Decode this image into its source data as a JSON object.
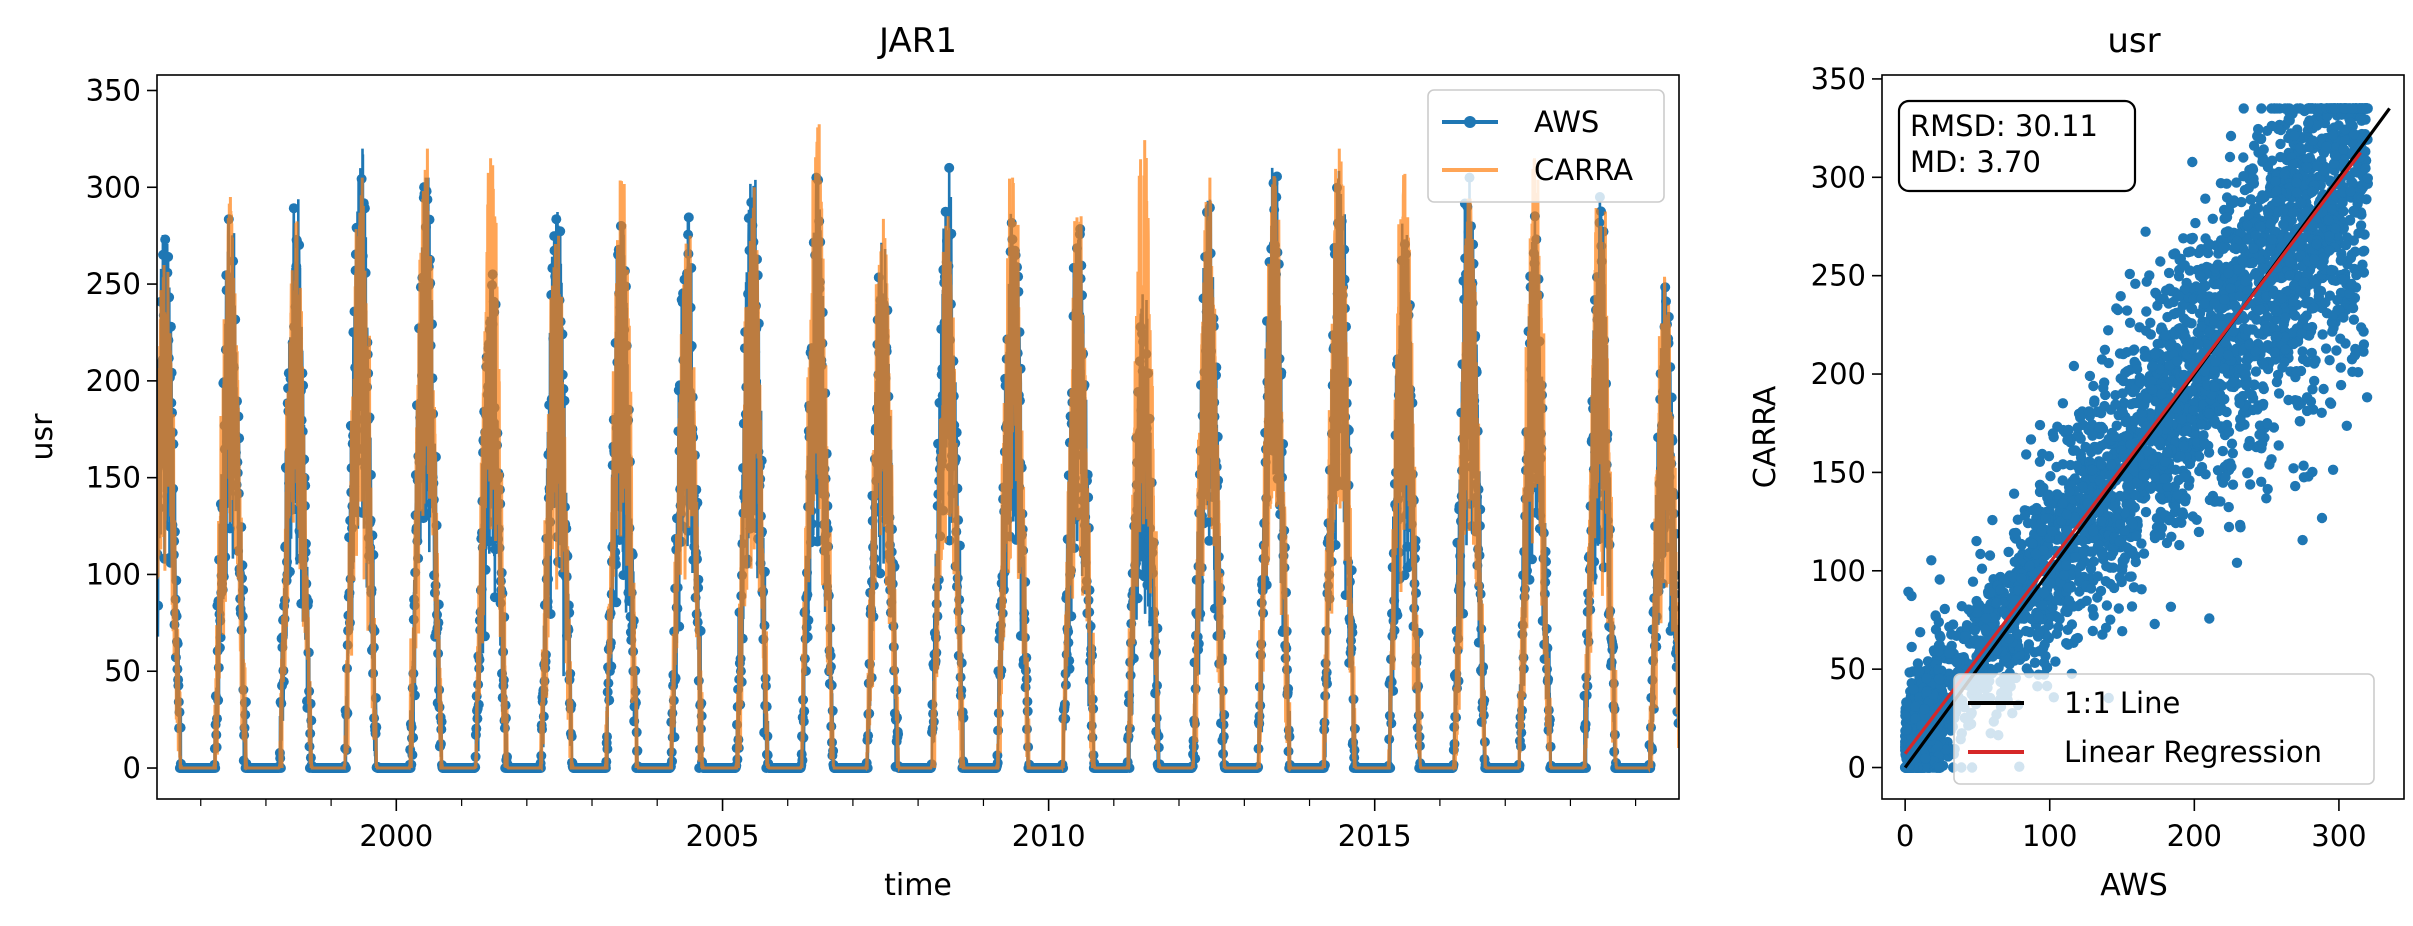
{
  "chart_data": [
    {
      "type": "line",
      "title": "JAR1",
      "xlabel": "time",
      "ylabel": "usr",
      "xlim": [
        "1996-05-01",
        "2019-09-01"
      ],
      "ylim": [
        -16,
        358
      ],
      "xticks": [
        {
          "value": "2000-01-01",
          "label": "2000"
        },
        {
          "value": "2005-01-01",
          "label": "2005"
        },
        {
          "value": "2010-01-01",
          "label": "2010"
        },
        {
          "value": "2015-01-01",
          "label": "2015"
        }
      ],
      "yticks": [
        0,
        50,
        100,
        150,
        200,
        250,
        300,
        350
      ],
      "grid": false,
      "legend": {
        "placement": "upper-right"
      },
      "series": [
        {
          "name": "AWS",
          "color": "#1f77b4",
          "marker": "circle",
          "seasonal_peaks": [
            {
              "date": "1996-06-15",
              "value": 280
            },
            {
              "date": "1997-06-15",
              "value": 285
            },
            {
              "date": "1998-06-15",
              "value": 290
            },
            {
              "date": "1999-06-15",
              "value": 315
            },
            {
              "date": "2000-06-15",
              "value": 300
            },
            {
              "date": "2001-06-15",
              "value": 250
            },
            {
              "date": "2002-06-15",
              "value": 288
            },
            {
              "date": "2003-06-15",
              "value": 275
            },
            {
              "date": "2004-06-15",
              "value": 280
            },
            {
              "date": "2005-06-15",
              "value": 305
            },
            {
              "date": "2006-06-15",
              "value": 300
            },
            {
              "date": "2007-06-15",
              "value": 270
            },
            {
              "date": "2008-06-15",
              "value": 305
            },
            {
              "date": "2009-06-15",
              "value": 290
            },
            {
              "date": "2010-06-15",
              "value": 280
            },
            {
              "date": "2011-06-15",
              "value": 240
            },
            {
              "date": "2012-06-15",
              "value": 295
            },
            {
              "date": "2013-06-15",
              "value": 305
            },
            {
              "date": "2014-06-15",
              "value": 305
            },
            {
              "date": "2015-06-15",
              "value": 290
            },
            {
              "date": "2016-06-15",
              "value": 300
            },
            {
              "date": "2017-06-15",
              "value": 280
            },
            {
              "date": "2018-06-15",
              "value": 290
            },
            {
              "date": "2019-06-15",
              "value": 245
            }
          ]
        },
        {
          "name": "CARRA",
          "color": "#ff7f0e",
          "seasonal_peaks": [
            {
              "date": "1996-06-15",
              "value": 260
            },
            {
              "date": "1997-06-15",
              "value": 290
            },
            {
              "date": "1998-06-15",
              "value": 280
            },
            {
              "date": "1999-06-15",
              "value": 300
            },
            {
              "date": "2000-06-15",
              "value": 315
            },
            {
              "date": "2001-06-15",
              "value": 310
            },
            {
              "date": "2002-06-15",
              "value": 270
            },
            {
              "date": "2003-06-15",
              "value": 310
            },
            {
              "date": "2004-06-15",
              "value": 270
            },
            {
              "date": "2005-06-15",
              "value": 295
            },
            {
              "date": "2006-06-15",
              "value": 333
            },
            {
              "date": "2007-06-15",
              "value": 280
            },
            {
              "date": "2008-06-15",
              "value": 280
            },
            {
              "date": "2009-06-15",
              "value": 300
            },
            {
              "date": "2010-06-15",
              "value": 280
            },
            {
              "date": "2011-06-15",
              "value": 322
            },
            {
              "date": "2012-06-15",
              "value": 300
            },
            {
              "date": "2013-06-15",
              "value": 300
            },
            {
              "date": "2014-06-15",
              "value": 315
            },
            {
              "date": "2015-06-15",
              "value": 310
            },
            {
              "date": "2016-06-15",
              "value": 290
            },
            {
              "date": "2017-06-15",
              "value": 310
            },
            {
              "date": "2018-06-15",
              "value": 295
            },
            {
              "date": "2019-06-15",
              "value": 250
            }
          ]
        }
      ]
    },
    {
      "type": "scatter",
      "title": "usr",
      "xlabel": "AWS",
      "ylabel": "CARRA",
      "xlim": [
        -16,
        345
      ],
      "ylim": [
        -16,
        352
      ],
      "xticks": [
        0,
        100,
        200,
        300
      ],
      "yticks": [
        0,
        50,
        100,
        150,
        200,
        250,
        300,
        350
      ],
      "grid": false,
      "annotation": {
        "lines": [
          "RMSD: 30.11",
          "MD: 3.70"
        ],
        "placement": "upper-left"
      },
      "legend": {
        "placement": "lower-right"
      },
      "points_color": "#1f77b4",
      "point_cloud": {
        "x_range": [
          0,
          320
        ],
        "y_range": [
          0,
          335
        ],
        "approx_count": 4000
      },
      "series": [
        {
          "name": "1:1 Line",
          "color": "#000000",
          "x": [
            0,
            335
          ],
          "y": [
            0,
            335
          ]
        },
        {
          "name": "Linear Regression",
          "color": "#d62728",
          "slope": 0.97,
          "intercept": 7,
          "x": [
            0,
            315
          ]
        }
      ]
    }
  ]
}
